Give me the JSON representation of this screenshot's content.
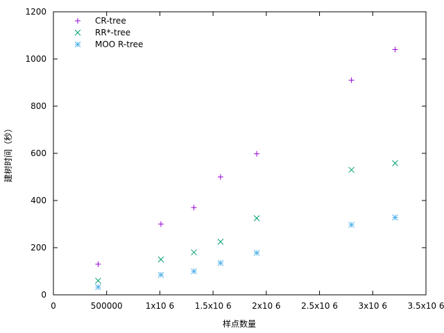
{
  "chart_data": {
    "type": "scatter",
    "title": "",
    "xlabel": "样点数量",
    "ylabel": "建树时间（秒）",
    "xlim": [
      0,
      3500000
    ],
    "ylim": [
      0,
      1200
    ],
    "grid": false,
    "legend_position": "top-left",
    "x_ticks": [
      {
        "value": 0,
        "label": "0"
      },
      {
        "value": 500000,
        "label": "500000"
      },
      {
        "value": 1000000,
        "label": "1x10 6"
      },
      {
        "value": 1500000,
        "label": "1.5x10 6"
      },
      {
        "value": 2000000,
        "label": "2x10 6"
      },
      {
        "value": 2500000,
        "label": "2.5x10 6"
      },
      {
        "value": 3000000,
        "label": "3x10 6"
      },
      {
        "value": 3500000,
        "label": "3.5x10 6"
      }
    ],
    "y_ticks": [
      {
        "value": 0,
        "label": "0"
      },
      {
        "value": 200,
        "label": "200"
      },
      {
        "value": 400,
        "label": "400"
      },
      {
        "value": 600,
        "label": "600"
      },
      {
        "value": 800,
        "label": "800"
      },
      {
        "value": 1000,
        "label": "1000"
      },
      {
        "value": 1200,
        "label": "1200"
      }
    ],
    "series": [
      {
        "name": "CR-tree",
        "marker": "plus",
        "color": "#9400d3",
        "x": [
          420000,
          1010000,
          1320000,
          1570000,
          1910000,
          2800000,
          3210000
        ],
        "values": [
          130,
          300,
          370,
          500,
          598,
          910,
          1040
        ]
      },
      {
        "name": "RR*-tree",
        "marker": "cross",
        "color": "#009e73",
        "x": [
          420000,
          1010000,
          1320000,
          1570000,
          1910000,
          2800000,
          3210000
        ],
        "values": [
          60,
          150,
          180,
          225,
          325,
          530,
          558
        ]
      },
      {
        "name": "MOO R-tree",
        "marker": "star",
        "color": "#56b4e9",
        "x": [
          420000,
          1010000,
          1320000,
          1570000,
          1910000,
          2800000,
          3210000
        ],
        "values": [
          33,
          85,
          100,
          135,
          178,
          297,
          328
        ]
      }
    ]
  }
}
